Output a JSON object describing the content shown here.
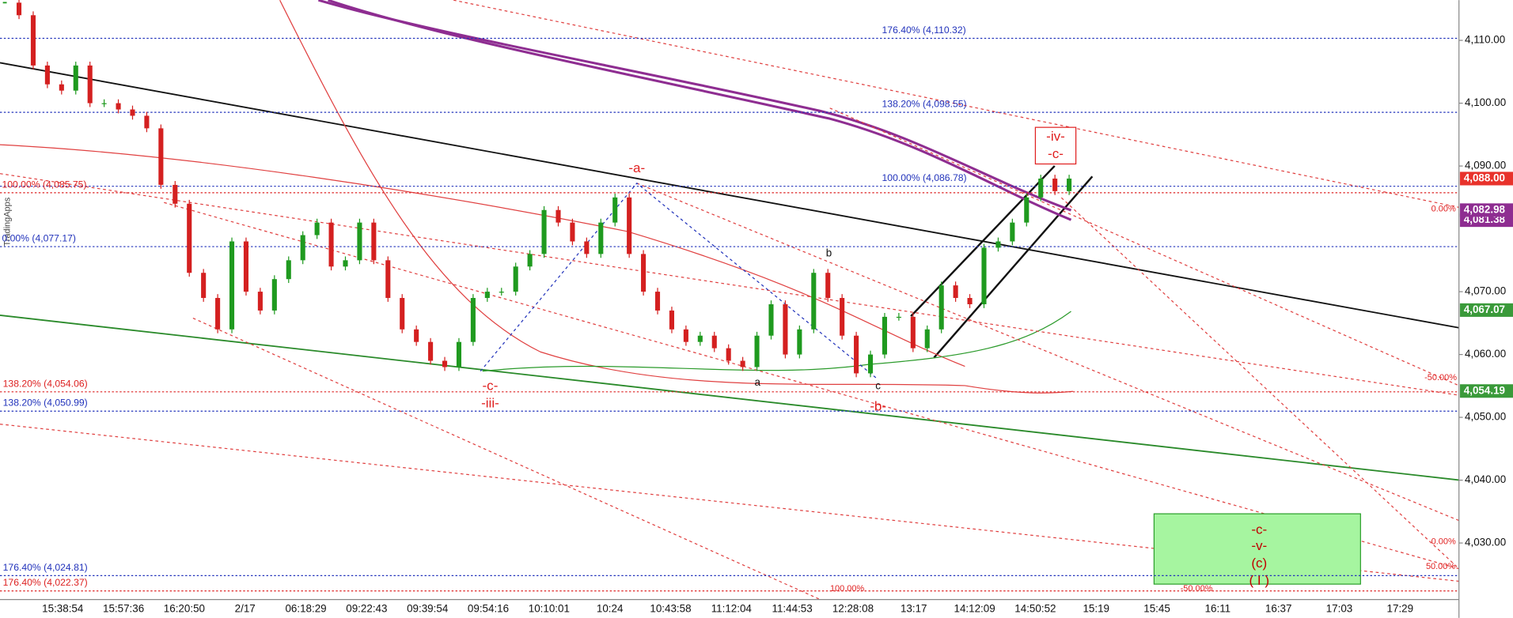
{
  "chart_data": {
    "type": "candlestick",
    "closes": [
      4116,
      4114,
      4106,
      4103,
      4102,
      4106,
      4100,
      4100,
      4099,
      4098,
      4096,
      4087,
      4084,
      4073,
      4069,
      4064,
      4078,
      4070,
      4067,
      4072,
      4075,
      4079,
      4081,
      4074,
      4075,
      4081,
      4075,
      4069,
      4064,
      4062,
      4059,
      4058,
      4062,
      4069,
      4070,
      4070,
      4074,
      4076,
      4083,
      4081,
      4078,
      4076,
      4081,
      4085,
      4076,
      4070,
      4067,
      4064,
      4062,
      4063,
      4061,
      4059,
      4058,
      4063,
      4068,
      4060,
      4064,
      4073,
      4069,
      4063,
      4057,
      4060,
      4066,
      4066,
      4061,
      4064,
      4071,
      4069,
      4068,
      4077,
      4078,
      4081,
      4085,
      4088,
      4086,
      4088
    ],
    "up_color": "#1f9a1f",
    "down_color": "#d42020",
    "ylim": [
      4021,
      4116.4
    ],
    "yticks": [
      {
        "value": 4030,
        "label": "4,030.00"
      },
      {
        "value": 4040,
        "label": "4,040.00"
      },
      {
        "value": 4050,
        "label": "4,050.00"
      },
      {
        "value": 4060,
        "label": "4,060.00"
      },
      {
        "value": 4070,
        "label": "4,070.00"
      },
      {
        "value": 4090,
        "label": "4,090.00"
      },
      {
        "value": 4100,
        "label": "4,100.00"
      },
      {
        "value": 4110,
        "label": "4,110.00"
      }
    ],
    "categories": [
      "15:38:54",
      "15:57:36",
      "16:20:50",
      "2/17",
      "06:18:29",
      "09:22:43",
      "09:39:54",
      "09:54:16",
      "10:10:01",
      "10:24",
      "10:43:58",
      "11:12:04",
      "11:44:53",
      "12:28:08",
      "13:17",
      "14:12:09",
      "14:50:52",
      "15:19",
      "15:45",
      "16:11",
      "16:37",
      "17:03",
      "17:29"
    ],
    "fib_levels": [
      {
        "value": 4110.32,
        "label": "176.40% (4,110.32)",
        "color": "#2233bb"
      },
      {
        "value": 4098.55,
        "label": "138.20% (4,098.55)",
        "color": "#2233bb"
      },
      {
        "value": 4086.78,
        "label": "100.00% (4,086.78)",
        "color": "#2233bb"
      },
      {
        "value": 4085.75,
        "label": "100.00% (4,085.75)",
        "color": "#dd2222"
      },
      {
        "value": 4077.17,
        "label": "0.00% (4,077.17)",
        "color": "#2233bb"
      },
      {
        "value": 4054.06,
        "label": "138.20% (4,054.06)",
        "color": "#dd2222"
      },
      {
        "value": 4050.99,
        "label": "138.20% (4,050.99)",
        "color": "#2233bb"
      },
      {
        "value": 4024.81,
        "label": "176.40% (4,024.81)",
        "color": "#2233bb"
      },
      {
        "value": 4022.37,
        "label": "176.40% (4,022.37)",
        "color": "#dd2222"
      }
    ],
    "price_tags": [
      {
        "value": 4081.38,
        "label": "4,081.38",
        "color": "#8e2d91"
      },
      {
        "value": 4088.0,
        "label": "4,088.00",
        "color": "#e8322b"
      },
      {
        "value": 4082.98,
        "label": "4,082.98",
        "color": "#8e2d91"
      },
      {
        "value": 4067.07,
        "label": "4,067.07",
        "color": "#3a9a3a"
      },
      {
        "value": 4054.19,
        "label": "4,054.19",
        "color": "#3a9a3a"
      }
    ],
    "annotations": [
      "-a-",
      "-c-",
      "-iii-",
      "b",
      "a",
      "c",
      "-b-",
      "-iv-",
      "-c-",
      "-c-",
      "-v-",
      "(c)",
      "( I )"
    ],
    "percent_labels": [
      "0.00%",
      "-50.00%",
      "0.00%",
      "50.00%",
      "100.00%",
      "-50.00%"
    ],
    "watermark": "TradingApps"
  }
}
